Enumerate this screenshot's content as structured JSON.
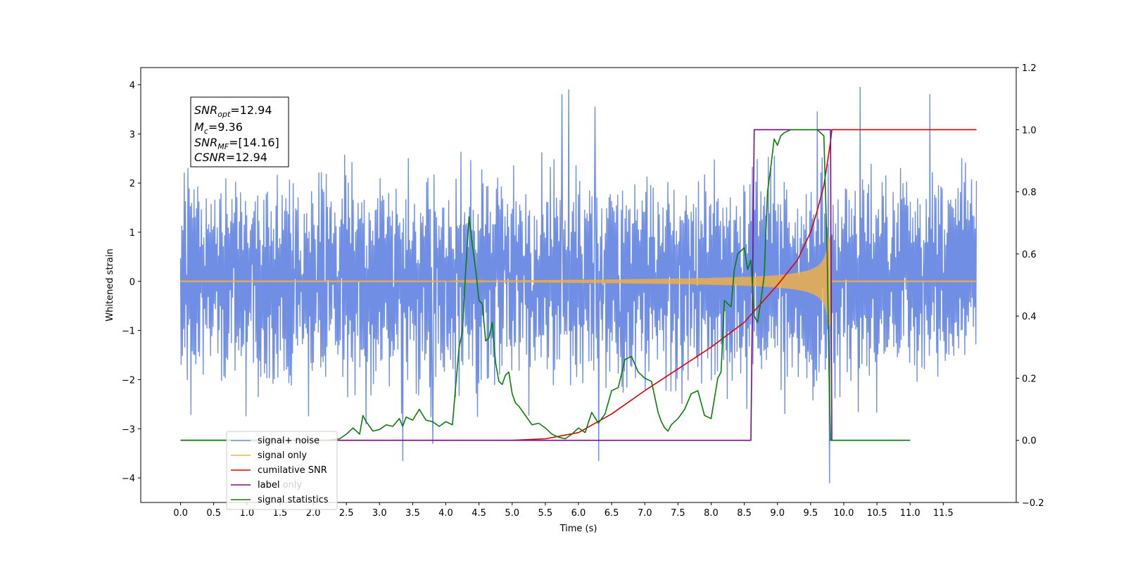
{
  "chart_data": {
    "type": "line",
    "xlabel": "Time (s)",
    "ylabel": "Whitened strain",
    "xlim": [
      -0.6,
      12.6
    ],
    "ylim": [
      -4.5,
      4.35
    ],
    "y2lim": [
      -0.2,
      1.2
    ],
    "x_ticks": [
      "0.0",
      "0.5",
      "1.0",
      "1.5",
      "2.0",
      "2.5",
      "3.0",
      "3.5",
      "4.0",
      "4.5",
      "5.0",
      "5.5",
      "6.0",
      "6.5",
      "7.0",
      "7.5",
      "8.0",
      "8.5",
      "9.0",
      "9.5",
      "10.0",
      "10.5",
      "11.0",
      "11.5"
    ],
    "y_ticks": [
      "4",
      "3",
      "2",
      "1",
      "0",
      "−1",
      "−2",
      "−3",
      "−4"
    ],
    "y2_ticks": [
      "1.2",
      "1.0",
      "0.8",
      "0.6",
      "0.4",
      "0.2",
      "0.0",
      "−0.2"
    ],
    "grid": false,
    "legend_position": "lower-left",
    "legend": [
      "signal+ noise",
      "signal only",
      "cumilative SNR",
      "label",
      "signal statistics"
    ],
    "legend_ghost_text": "label only",
    "annotation": {
      "lines": [
        {
          "var": "SNR",
          "sub": "opt",
          "value": "=12.94"
        },
        {
          "var": "M",
          "sub": "c",
          "value": "=9.36"
        },
        {
          "var": "SNR",
          "sub": "MF",
          "value": "=[14.16]"
        },
        {
          "var": "CSNR",
          "sub": "",
          "value": "=12.94"
        }
      ]
    },
    "series": [
      {
        "name": "signal+ noise",
        "color": "#6f8ee4",
        "axis": "left",
        "x_range": [
          0.0,
          12.0
        ],
        "typical_amplitude": [
          -1.7,
          1.7
        ],
        "peaks": [
          [
            5.85,
            3.9
          ],
          [
            5.75,
            3.8
          ],
          [
            6.25,
            3.55
          ],
          [
            9.6,
            3.45
          ],
          [
            10.25,
            3.95
          ],
          [
            11.3,
            3.8
          ],
          [
            9.78,
            -4.1
          ],
          [
            3.35,
            -3.65
          ],
          [
            6.3,
            -3.65
          ],
          [
            3.8,
            -3.3
          ]
        ]
      },
      {
        "name": "signal only",
        "color": "#f5b041",
        "axis": "left",
        "x_range": [
          0.0,
          12.0
        ],
        "chirp_start": 4.0,
        "chirp_peak_time": 9.8,
        "chirp_peak_amplitude": 0.9
      },
      {
        "name": "cumilative SNR",
        "color": "#e00000",
        "axis": "right",
        "x": [
          0.0,
          5.0,
          5.5,
          6.0,
          6.5,
          7.0,
          7.5,
          8.0,
          8.5,
          9.0,
          9.3,
          9.5,
          9.6,
          9.7,
          9.8,
          9.82,
          12.0
        ],
        "y": [
          0.0,
          0.0,
          0.005,
          0.025,
          0.085,
          0.16,
          0.23,
          0.3,
          0.38,
          0.5,
          0.58,
          0.67,
          0.74,
          0.82,
          0.96,
          1.0,
          1.0
        ]
      },
      {
        "name": "label",
        "color": "#7a0c8a",
        "axis": "right",
        "x": [
          0.0,
          8.6,
          8.65,
          9.8,
          9.82,
          11.0
        ],
        "y": [
          0.0,
          0.0,
          1.0,
          1.0,
          0.0,
          0.0
        ]
      },
      {
        "name": "signal statistics",
        "color": "#0a7d0a",
        "axis": "right",
        "x": [
          0.0,
          2.2,
          2.4,
          2.5,
          2.6,
          2.7,
          2.75,
          2.8,
          2.9,
          3.0,
          3.1,
          3.2,
          3.3,
          3.35,
          3.4,
          3.5,
          3.6,
          3.7,
          3.8,
          3.9,
          4.0,
          4.1,
          4.15,
          4.2,
          4.25,
          4.3,
          4.35,
          4.4,
          4.45,
          4.5,
          4.55,
          4.6,
          4.65,
          4.7,
          4.75,
          4.8,
          4.85,
          4.9,
          4.95,
          5.0,
          5.05,
          5.1,
          5.2,
          5.3,
          5.4,
          5.5,
          5.6,
          5.7,
          5.8,
          5.9,
          6.0,
          6.1,
          6.2,
          6.3,
          6.4,
          6.5,
          6.6,
          6.7,
          6.8,
          6.9,
          7.0,
          7.1,
          7.2,
          7.25,
          7.3,
          7.35,
          7.4,
          7.5,
          7.6,
          7.7,
          7.8,
          7.9,
          8.0,
          8.1,
          8.15,
          8.2,
          8.3,
          8.35,
          8.4,
          8.5,
          8.55,
          8.6,
          8.65,
          8.7,
          8.75,
          8.8,
          8.85,
          8.9,
          8.95,
          9.0,
          9.05,
          9.1,
          9.2,
          9.3,
          9.4,
          9.5,
          9.6,
          9.7,
          9.75,
          9.78,
          9.8,
          9.83,
          9.87,
          11.0
        ],
        "y": [
          0.0,
          0.0,
          0.005,
          0.02,
          0.04,
          0.02,
          0.08,
          0.06,
          0.03,
          0.035,
          0.05,
          0.045,
          0.07,
          0.045,
          0.075,
          0.065,
          0.1,
          0.065,
          0.06,
          0.045,
          0.06,
          0.05,
          0.18,
          0.3,
          0.35,
          0.55,
          0.72,
          0.63,
          0.55,
          0.45,
          0.44,
          0.32,
          0.33,
          0.38,
          0.25,
          0.19,
          0.18,
          0.21,
          0.22,
          0.15,
          0.12,
          0.11,
          0.08,
          0.05,
          0.055,
          0.04,
          0.02,
          0.01,
          0.005,
          0.02,
          0.04,
          0.025,
          0.09,
          0.055,
          0.085,
          0.16,
          0.17,
          0.26,
          0.27,
          0.22,
          0.2,
          0.19,
          0.09,
          0.06,
          0.04,
          0.03,
          0.05,
          0.07,
          0.1,
          0.15,
          0.16,
          0.08,
          0.07,
          0.2,
          0.22,
          0.45,
          0.43,
          0.55,
          0.6,
          0.62,
          0.55,
          0.58,
          0.4,
          0.38,
          0.45,
          0.53,
          0.8,
          0.88,
          0.97,
          0.95,
          0.98,
          0.99,
          1.0,
          1.0,
          1.0,
          1.0,
          1.0,
          0.98,
          0.6,
          0.2,
          0.0,
          0.0,
          0.0,
          0.0
        ]
      }
    ]
  }
}
